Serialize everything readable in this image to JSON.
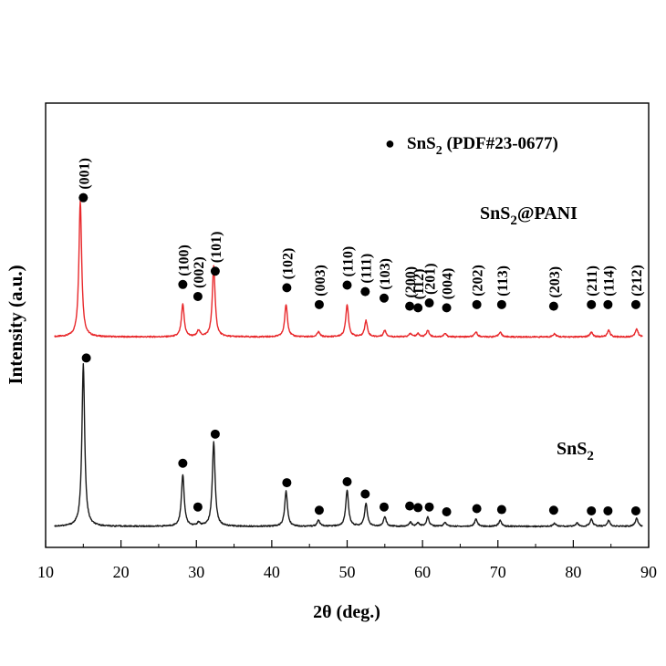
{
  "chart_data": {
    "type": "line",
    "xlabel": "2θ (deg.)",
    "ylabel": "Intensity (a.u.)",
    "xlim": [
      10,
      90
    ],
    "x_ticks": [
      "10",
      "20",
      "30",
      "40",
      "50",
      "60",
      "70",
      "80",
      "90"
    ],
    "grid": false,
    "legend": {
      "position": "top-right",
      "marker_symbol": "●",
      "text": "SnS",
      "sub": "2",
      "text2": " (PDF#23-0677)"
    },
    "series": [
      {
        "name_main": "SnS",
        "name_sub": "2",
        "name_suffix": "@PANI",
        "color": "#e8282b",
        "baseline": 0.585,
        "peaks": [
          {
            "x": 14.6,
            "h": 0.42
          },
          {
            "x": 28.2,
            "h": 0.1
          },
          {
            "x": 30.3,
            "h": 0.02
          },
          {
            "x": 32.3,
            "h": 0.22
          },
          {
            "x": 41.9,
            "h": 0.1
          },
          {
            "x": 46.2,
            "h": 0.015
          },
          {
            "x": 50.0,
            "h": 0.1
          },
          {
            "x": 52.5,
            "h": 0.05
          },
          {
            "x": 55.0,
            "h": 0.02
          },
          {
            "x": 58.4,
            "h": 0.01
          },
          {
            "x": 59.4,
            "h": 0.01
          },
          {
            "x": 60.7,
            "h": 0.02
          },
          {
            "x": 63.0,
            "h": 0.01
          },
          {
            "x": 67.1,
            "h": 0.015
          },
          {
            "x": 70.3,
            "h": 0.015
          },
          {
            "x": 77.5,
            "h": 0.01
          },
          {
            "x": 82.4,
            "h": 0.015
          },
          {
            "x": 84.7,
            "h": 0.02
          },
          {
            "x": 88.4,
            "h": 0.025
          }
        ],
        "markers": [
          {
            "x": 15.0,
            "label": "(001)",
            "y": 0.43
          },
          {
            "x": 28.2,
            "label": "(100)",
            "y": 0.162
          },
          {
            "x": 30.2,
            "label": "(002)",
            "y": 0.125
          },
          {
            "x": 32.5,
            "label": "(101)",
            "y": 0.203
          },
          {
            "x": 42.0,
            "label": "(102)",
            "y": 0.152
          },
          {
            "x": 46.3,
            "label": "(003)",
            "y": 0.1
          },
          {
            "x": 50.0,
            "label": "(110)",
            "y": 0.16
          },
          {
            "x": 52.4,
            "label": "(111)",
            "y": 0.14
          },
          {
            "x": 54.9,
            "label": "(103)",
            "y": 0.12
          },
          {
            "x": 58.3,
            "label": "(200)",
            "y": 0.095
          },
          {
            "x": 59.4,
            "label": "(112)",
            "y": 0.09
          },
          {
            "x": 60.9,
            "label": "(201)",
            "y": 0.105
          },
          {
            "x": 63.2,
            "label": "(004)",
            "y": 0.09
          },
          {
            "x": 67.2,
            "label": "(202)",
            "y": 0.1
          },
          {
            "x": 70.5,
            "label": "(113)",
            "y": 0.1
          },
          {
            "x": 77.4,
            "label": "(203)",
            "y": 0.095
          },
          {
            "x": 82.4,
            "label": "(211)",
            "y": 0.1
          },
          {
            "x": 84.6,
            "label": "(114)",
            "y": 0.1
          },
          {
            "x": 88.3,
            "label": "(212)",
            "y": 0.1
          }
        ]
      },
      {
        "name_main": "SnS",
        "name_sub": "2",
        "name_suffix": "",
        "color": "#1a1a1a",
        "baseline": 0.0,
        "peaks": [
          {
            "x": 15.0,
            "h": 0.5
          },
          {
            "x": 28.2,
            "h": 0.16
          },
          {
            "x": 30.3,
            "h": 0.01
          },
          {
            "x": 32.3,
            "h": 0.26
          },
          {
            "x": 41.9,
            "h": 0.108
          },
          {
            "x": 46.2,
            "h": 0.018
          },
          {
            "x": 50.0,
            "h": 0.112
          },
          {
            "x": 52.5,
            "h": 0.07
          },
          {
            "x": 55.0,
            "h": 0.028
          },
          {
            "x": 58.4,
            "h": 0.012
          },
          {
            "x": 59.4,
            "h": 0.01
          },
          {
            "x": 60.7,
            "h": 0.028
          },
          {
            "x": 63.0,
            "h": 0.012
          },
          {
            "x": 67.1,
            "h": 0.022
          },
          {
            "x": 70.3,
            "h": 0.018
          },
          {
            "x": 77.5,
            "h": 0.01
          },
          {
            "x": 80.5,
            "h": 0.01
          },
          {
            "x": 82.4,
            "h": 0.022
          },
          {
            "x": 84.7,
            "h": 0.018
          },
          {
            "x": 88.4,
            "h": 0.025
          }
        ],
        "markers": [
          {
            "x": 15.4,
            "y": 0.52
          },
          {
            "x": 28.2,
            "y": 0.195
          },
          {
            "x": 30.2,
            "y": 0.06
          },
          {
            "x": 32.5,
            "y": 0.285
          },
          {
            "x": 42.0,
            "y": 0.135
          },
          {
            "x": 46.3,
            "y": 0.05
          },
          {
            "x": 50.0,
            "y": 0.138
          },
          {
            "x": 52.4,
            "y": 0.1
          },
          {
            "x": 54.9,
            "y": 0.06
          },
          {
            "x": 58.3,
            "y": 0.063
          },
          {
            "x": 59.4,
            "y": 0.058
          },
          {
            "x": 60.9,
            "y": 0.06
          },
          {
            "x": 63.2,
            "y": 0.045
          },
          {
            "x": 67.2,
            "y": 0.055
          },
          {
            "x": 70.5,
            "y": 0.052
          },
          {
            "x": 77.4,
            "y": 0.05
          },
          {
            "x": 82.4,
            "y": 0.048
          },
          {
            "x": 84.6,
            "y": 0.048
          },
          {
            "x": 88.3,
            "y": 0.048
          }
        ]
      }
    ]
  }
}
